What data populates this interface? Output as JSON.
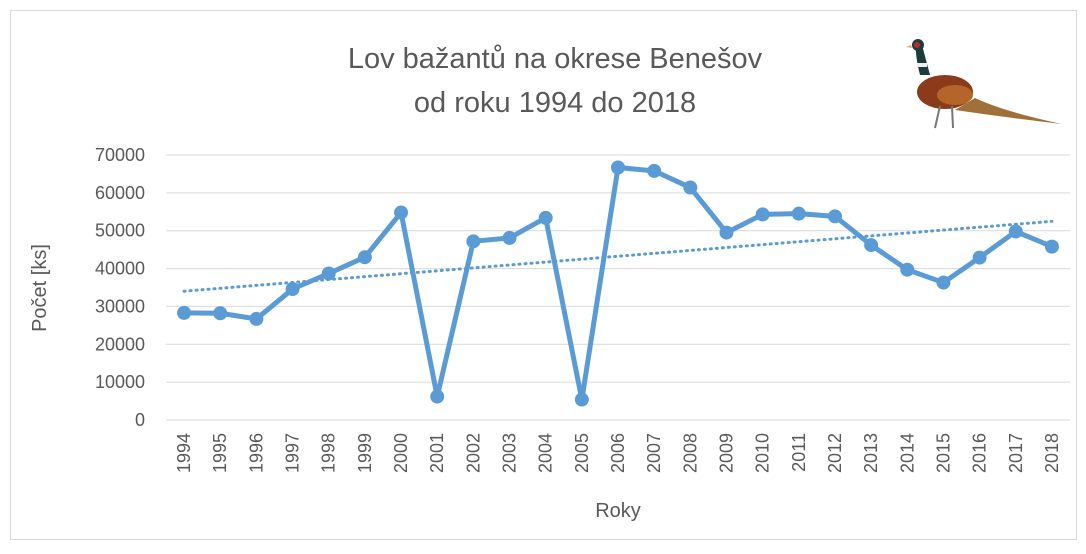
{
  "chart_data": {
    "type": "line",
    "title_lines": [
      "Lov bažantů na okrese Benešov",
      "od roku 1994 do 2018"
    ],
    "x_label": "Roky",
    "y_label": "Počet [ks]",
    "categories": [
      "1994",
      "1995",
      "1996",
      "1997",
      "1998",
      "1999",
      "2000",
      "2001",
      "2002",
      "2003",
      "2004",
      "2005",
      "2006",
      "2007",
      "2008",
      "2009",
      "2010",
      "2011",
      "2012",
      "2013",
      "2014",
      "2015",
      "2016",
      "2017",
      "2018"
    ],
    "values": [
      28300,
      28200,
      26700,
      34600,
      38700,
      43000,
      54800,
      6200,
      47200,
      48100,
      53400,
      5400,
      66700,
      65800,
      61400,
      49500,
      54300,
      54500,
      53800,
      46200,
      39700,
      36300,
      42900,
      49800,
      45800
    ],
    "color": "#5b9bd5",
    "ylim": [
      0,
      70000
    ],
    "yticks": [
      0,
      10000,
      20000,
      30000,
      40000,
      50000,
      60000,
      70000
    ],
    "grid": true,
    "trendline": "linear"
  }
}
